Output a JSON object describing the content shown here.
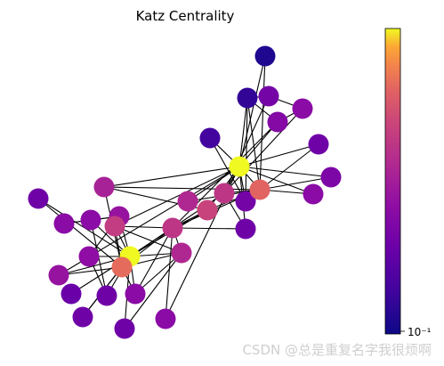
{
  "chart_data": {
    "type": "network",
    "title": "Katz Centrality",
    "colormap": "plasma",
    "colorbar": {
      "scale": "log",
      "tick_label": "10⁻¹"
    },
    "nodes": [
      {
        "id": 0,
        "value": 1.0
      },
      {
        "id": 1,
        "value": 0.82
      },
      {
        "id": 2,
        "value": 0.62
      },
      {
        "id": 3,
        "value": 0.55
      },
      {
        "id": 4,
        "value": 0.42
      },
      {
        "id": 5,
        "value": 0.4
      },
      {
        "id": 6,
        "value": 0.45
      },
      {
        "id": 7,
        "value": 0.4
      },
      {
        "id": 8,
        "value": 0.68
      },
      {
        "id": 9,
        "value": 0.4
      },
      {
        "id": 10,
        "value": 0.3
      },
      {
        "id": 11,
        "value": 0.28
      },
      {
        "id": 12,
        "value": 0.3
      },
      {
        "id": 13,
        "value": 0.65
      },
      {
        "id": 14,
        "value": 0.55
      },
      {
        "id": 15,
        "value": 0.05
      },
      {
        "id": 16,
        "value": 0.4
      },
      {
        "id": 17,
        "value": 0.3
      },
      {
        "id": 18,
        "value": 0.3
      },
      {
        "id": 19,
        "value": 0.45
      },
      {
        "id": 20,
        "value": 0.35
      },
      {
        "id": 21,
        "value": 0.3
      },
      {
        "id": 22,
        "value": 0.4
      },
      {
        "id": 23,
        "value": 0.1
      },
      {
        "id": 24,
        "value": 0.4
      },
      {
        "id": 25,
        "value": 0.32
      },
      {
        "id": 26,
        "value": 0.15
      },
      {
        "id": 27,
        "value": 0.38
      },
      {
        "id": 28,
        "value": 0.3
      },
      {
        "id": 29,
        "value": 0.32
      },
      {
        "id": 30,
        "value": 0.52
      },
      {
        "id": 31,
        "value": 0.62
      },
      {
        "id": 32,
        "value": 0.8
      },
      {
        "id": 33,
        "value": 1.0
      }
    ],
    "edges": [
      [
        0,
        1
      ],
      [
        0,
        2
      ],
      [
        0,
        3
      ],
      [
        0,
        4
      ],
      [
        0,
        5
      ],
      [
        0,
        6
      ],
      [
        0,
        7
      ],
      [
        0,
        8
      ],
      [
        0,
        10
      ],
      [
        0,
        11
      ],
      [
        0,
        12
      ],
      [
        0,
        13
      ],
      [
        0,
        17
      ],
      [
        0,
        19
      ],
      [
        0,
        21
      ],
      [
        0,
        31
      ],
      [
        1,
        2
      ],
      [
        1,
        3
      ],
      [
        1,
        7
      ],
      [
        1,
        13
      ],
      [
        1,
        17
      ],
      [
        1,
        19
      ],
      [
        1,
        21
      ],
      [
        1,
        30
      ],
      [
        2,
        3
      ],
      [
        2,
        7
      ],
      [
        2,
        8
      ],
      [
        2,
        9
      ],
      [
        2,
        13
      ],
      [
        2,
        27
      ],
      [
        2,
        28
      ],
      [
        2,
        32
      ],
      [
        3,
        7
      ],
      [
        3,
        12
      ],
      [
        3,
        13
      ],
      [
        4,
        6
      ],
      [
        4,
        10
      ],
      [
        5,
        6
      ],
      [
        5,
        10
      ],
      [
        5,
        16
      ],
      [
        6,
        16
      ],
      [
        8,
        30
      ],
      [
        8,
        32
      ],
      [
        8,
        33
      ],
      [
        9,
        33
      ],
      [
        13,
        33
      ],
      [
        14,
        32
      ],
      [
        14,
        33
      ],
      [
        15,
        32
      ],
      [
        15,
        33
      ],
      [
        18,
        32
      ],
      [
        18,
        33
      ],
      [
        19,
        33
      ],
      [
        20,
        32
      ],
      [
        20,
        33
      ],
      [
        22,
        32
      ],
      [
        22,
        33
      ],
      [
        23,
        25
      ],
      [
        23,
        27
      ],
      [
        23,
        29
      ],
      [
        23,
        32
      ],
      [
        23,
        33
      ],
      [
        24,
        25
      ],
      [
        24,
        27
      ],
      [
        24,
        31
      ],
      [
        25,
        31
      ],
      [
        26,
        29
      ],
      [
        26,
        33
      ],
      [
        27,
        33
      ],
      [
        28,
        31
      ],
      [
        28,
        33
      ],
      [
        29,
        32
      ],
      [
        29,
        33
      ],
      [
        30,
        32
      ],
      [
        30,
        33
      ],
      [
        31,
        32
      ],
      [
        31,
        33
      ],
      [
        32,
        33
      ]
    ]
  },
  "watermark": "CSDN @总是重复名字我很烦啊"
}
